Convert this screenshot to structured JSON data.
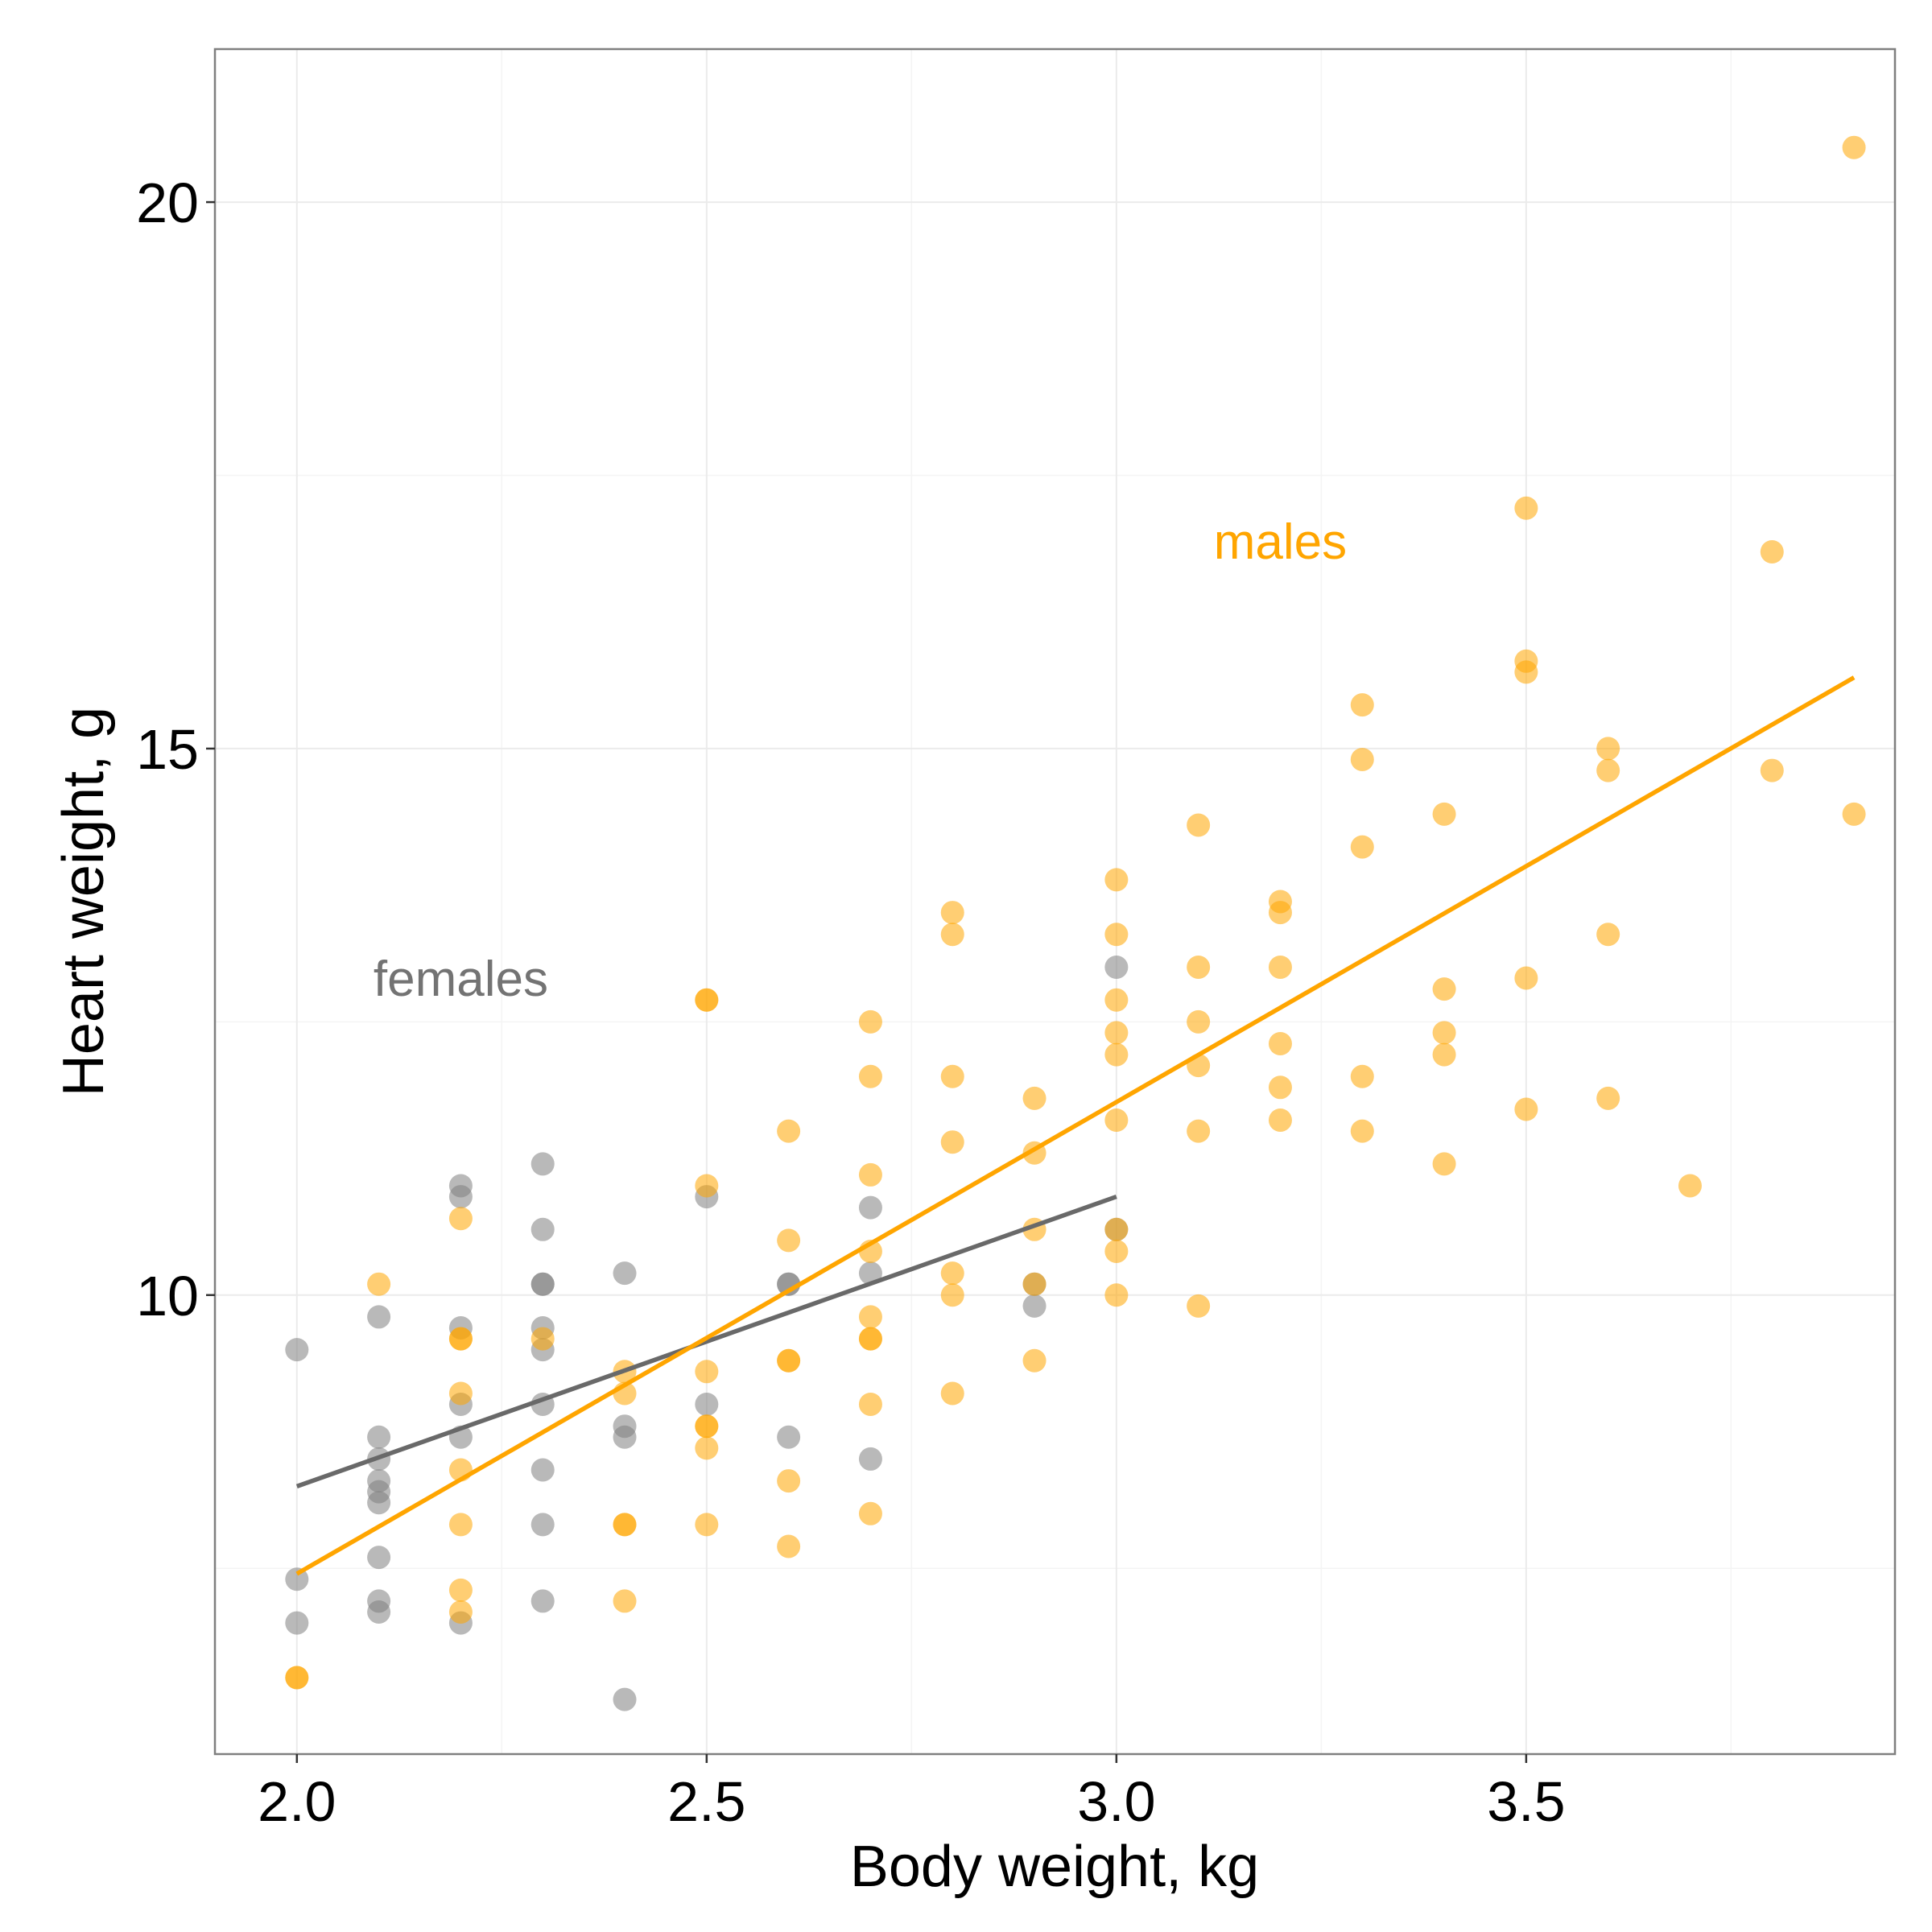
{
  "chart_data": {
    "type": "scatter",
    "xlabel": "Body weight, kg",
    "ylabel": "Heart weight, g",
    "xlim": [
      1.9,
      3.95
    ],
    "ylim": [
      5.8,
      21.4
    ],
    "x_ticks": [
      "2.0",
      "2.5",
      "3.0",
      "3.5"
    ],
    "x_tick_values": [
      2.0,
      2.5,
      3.0,
      3.5
    ],
    "y_ticks": [
      "10",
      "15",
      "20"
    ],
    "y_tick_values": [
      10,
      15,
      20
    ],
    "grid": true,
    "legend": "none",
    "annotations": [
      {
        "text": "females",
        "x": 2.2,
        "y": 12.9,
        "color": "#737373"
      },
      {
        "text": "males",
        "x": 3.2,
        "y": 16.9,
        "color": "#FFA500"
      }
    ],
    "series": [
      {
        "name": "females",
        "color": "#808080",
        "fit_line_color": "#696969",
        "fit": {
          "x": [
            2.0,
            3.0
          ],
          "y": [
            8.25,
            10.9
          ]
        },
        "points": [
          [
            2.0,
            9.5
          ],
          [
            2.0,
            7.4
          ],
          [
            2.0,
            7.0
          ],
          [
            2.1,
            9.8
          ],
          [
            2.1,
            8.7
          ],
          [
            2.1,
            8.5
          ],
          [
            2.1,
            8.3
          ],
          [
            2.1,
            8.2
          ],
          [
            2.1,
            8.1
          ],
          [
            2.1,
            7.6
          ],
          [
            2.1,
            7.2
          ],
          [
            2.1,
            7.1
          ],
          [
            2.2,
            11.0
          ],
          [
            2.2,
            10.9
          ],
          [
            2.2,
            9.7
          ],
          [
            2.2,
            9.0
          ],
          [
            2.2,
            8.7
          ],
          [
            2.2,
            7.0
          ],
          [
            2.3,
            11.2
          ],
          [
            2.3,
            10.6
          ],
          [
            2.3,
            10.1
          ],
          [
            2.3,
            10.1
          ],
          [
            2.3,
            9.7
          ],
          [
            2.3,
            9.5
          ],
          [
            2.3,
            9.0
          ],
          [
            2.3,
            8.4
          ],
          [
            2.3,
            7.9
          ],
          [
            2.3,
            7.2
          ],
          [
            2.4,
            10.2
          ],
          [
            2.4,
            8.8
          ],
          [
            2.4,
            8.7
          ],
          [
            2.4,
            6.3
          ],
          [
            2.5,
            10.9
          ],
          [
            2.5,
            9.0
          ],
          [
            2.6,
            10.1
          ],
          [
            2.6,
            10.1
          ],
          [
            2.6,
            8.7
          ],
          [
            2.7,
            10.8
          ],
          [
            2.7,
            10.2
          ],
          [
            2.7,
            8.5
          ],
          [
            2.9,
            10.1
          ],
          [
            2.9,
            9.9
          ],
          [
            3.0,
            13.0
          ],
          [
            3.0,
            10.6
          ]
        ]
      },
      {
        "name": "males",
        "color": "#FFA500",
        "fit_line_color": "#FFA500",
        "fit": {
          "x": [
            2.0,
            3.9
          ],
          "y": [
            7.45,
            15.65
          ]
        },
        "points": [
          [
            2.0,
            6.5
          ],
          [
            2.0,
            6.5
          ],
          [
            2.1,
            10.1
          ],
          [
            2.2,
            10.7
          ],
          [
            2.2,
            9.6
          ],
          [
            2.2,
            9.6
          ],
          [
            2.2,
            9.1
          ],
          [
            2.2,
            8.4
          ],
          [
            2.2,
            7.9
          ],
          [
            2.2,
            7.3
          ],
          [
            2.2,
            7.1
          ],
          [
            2.3,
            9.6
          ],
          [
            2.4,
            9.3
          ],
          [
            2.4,
            9.1
          ],
          [
            2.4,
            7.9
          ],
          [
            2.4,
            7.9
          ],
          [
            2.4,
            7.2
          ],
          [
            2.5,
            12.7
          ],
          [
            2.5,
            12.7
          ],
          [
            2.5,
            11.0
          ],
          [
            2.5,
            9.3
          ],
          [
            2.5,
            8.8
          ],
          [
            2.5,
            8.8
          ],
          [
            2.5,
            8.6
          ],
          [
            2.5,
            7.9
          ],
          [
            2.6,
            11.5
          ],
          [
            2.6,
            10.5
          ],
          [
            2.6,
            9.4
          ],
          [
            2.6,
            9.4
          ],
          [
            2.6,
            8.3
          ],
          [
            2.6,
            7.7
          ],
          [
            2.7,
            12.5
          ],
          [
            2.7,
            12.0
          ],
          [
            2.7,
            11.1
          ],
          [
            2.7,
            10.4
          ],
          [
            2.7,
            9.8
          ],
          [
            2.7,
            9.6
          ],
          [
            2.7,
            9.6
          ],
          [
            2.7,
            9.0
          ],
          [
            2.7,
            8.0
          ],
          [
            2.8,
            13.5
          ],
          [
            2.8,
            13.3
          ],
          [
            2.8,
            12.0
          ],
          [
            2.8,
            11.4
          ],
          [
            2.8,
            10.2
          ],
          [
            2.8,
            10.0
          ],
          [
            2.8,
            9.1
          ],
          [
            2.9,
            11.8
          ],
          [
            2.9,
            11.3
          ],
          [
            2.9,
            10.6
          ],
          [
            2.9,
            10.1
          ],
          [
            2.9,
            9.4
          ],
          [
            3.0,
            13.8
          ],
          [
            3.0,
            13.3
          ],
          [
            3.0,
            12.7
          ],
          [
            3.0,
            12.4
          ],
          [
            3.0,
            12.2
          ],
          [
            3.0,
            11.6
          ],
          [
            3.0,
            10.6
          ],
          [
            3.0,
            10.4
          ],
          [
            3.0,
            10.0
          ],
          [
            3.1,
            14.3
          ],
          [
            3.1,
            13.0
          ],
          [
            3.1,
            12.5
          ],
          [
            3.1,
            12.1
          ],
          [
            3.1,
            11.5
          ],
          [
            3.1,
            9.9
          ],
          [
            3.2,
            13.6
          ],
          [
            3.2,
            13.5
          ],
          [
            3.2,
            13.0
          ],
          [
            3.2,
            12.3
          ],
          [
            3.2,
            11.9
          ],
          [
            3.2,
            11.6
          ],
          [
            3.3,
            15.4
          ],
          [
            3.3,
            14.9
          ],
          [
            3.3,
            14.1
          ],
          [
            3.3,
            12.0
          ],
          [
            3.3,
            11.5
          ],
          [
            3.4,
            14.4
          ],
          [
            3.4,
            12.8
          ],
          [
            3.4,
            12.4
          ],
          [
            3.4,
            12.2
          ],
          [
            3.4,
            11.2
          ],
          [
            3.5,
            17.2
          ],
          [
            3.5,
            15.8
          ],
          [
            3.5,
            15.7
          ],
          [
            3.5,
            12.9
          ],
          [
            3.5,
            11.7
          ],
          [
            3.6,
            15.0
          ],
          [
            3.6,
            14.8
          ],
          [
            3.6,
            13.3
          ],
          [
            3.6,
            11.8
          ],
          [
            3.7,
            11.0
          ],
          [
            3.8,
            16.8
          ],
          [
            3.8,
            14.8
          ],
          [
            3.9,
            20.5
          ],
          [
            3.9,
            14.4
          ]
        ]
      }
    ]
  }
}
